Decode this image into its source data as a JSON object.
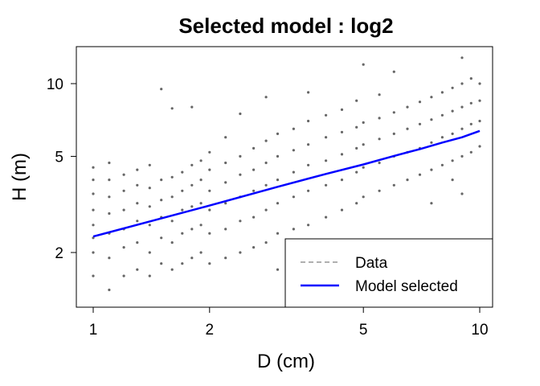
{
  "chart_data": {
    "type": "scatter",
    "title": "Selected model :  log2",
    "xlabel": "D (cm)",
    "ylabel": "H (m)",
    "x_scale": "log",
    "y_scale": "log",
    "xlim": [
      0.95,
      10.5
    ],
    "ylim": [
      1.35,
      13.5
    ],
    "x_ticks": [
      1,
      2,
      5,
      10
    ],
    "x_tick_labels": [
      "1",
      "2",
      "5",
      "10"
    ],
    "y_ticks": [
      2,
      5,
      10
    ],
    "y_tick_labels": [
      "2",
      "5",
      "10"
    ],
    "grid": false,
    "legend_position": "bottom-right",
    "series": [
      {
        "name": "Data",
        "kind": "points",
        "color": "#666666",
        "legend_color": "#b0b0b0",
        "legend_style": "dashed",
        "points": [
          [
            1.0,
            1.6
          ],
          [
            1.0,
            2.0
          ],
          [
            1.0,
            2.3
          ],
          [
            1.0,
            2.6
          ],
          [
            1.0,
            3.0
          ],
          [
            1.0,
            3.5
          ],
          [
            1.0,
            4.0
          ],
          [
            1.0,
            4.5
          ],
          [
            1.1,
            1.4
          ],
          [
            1.1,
            1.9
          ],
          [
            1.1,
            2.4
          ],
          [
            1.1,
            2.9
          ],
          [
            1.1,
            3.4
          ],
          [
            1.1,
            4.0
          ],
          [
            1.1,
            4.7
          ],
          [
            1.2,
            1.6
          ],
          [
            1.2,
            2.1
          ],
          [
            1.2,
            2.5
          ],
          [
            1.2,
            3.0
          ],
          [
            1.2,
            3.6
          ],
          [
            1.2,
            4.2
          ],
          [
            1.3,
            1.7
          ],
          [
            1.3,
            2.2
          ],
          [
            1.3,
            2.7
          ],
          [
            1.3,
            3.2
          ],
          [
            1.3,
            3.8
          ],
          [
            1.3,
            4.4
          ],
          [
            1.4,
            1.6
          ],
          [
            1.4,
            2.0
          ],
          [
            1.4,
            2.6
          ],
          [
            1.4,
            3.1
          ],
          [
            1.4,
            3.7
          ],
          [
            1.4,
            4.6
          ],
          [
            1.5,
            1.8
          ],
          [
            1.5,
            2.3
          ],
          [
            1.5,
            2.8
          ],
          [
            1.5,
            3.3
          ],
          [
            1.5,
            4.0
          ],
          [
            1.5,
            9.5
          ],
          [
            1.6,
            1.7
          ],
          [
            1.6,
            2.2
          ],
          [
            1.6,
            2.7
          ],
          [
            1.6,
            3.4
          ],
          [
            1.6,
            4.1
          ],
          [
            1.6,
            7.9
          ],
          [
            1.7,
            1.8
          ],
          [
            1.7,
            2.4
          ],
          [
            1.7,
            3.0
          ],
          [
            1.7,
            3.6
          ],
          [
            1.7,
            4.3
          ],
          [
            1.8,
            1.9
          ],
          [
            1.8,
            2.5
          ],
          [
            1.8,
            3.1
          ],
          [
            1.8,
            3.8
          ],
          [
            1.8,
            4.6
          ],
          [
            1.8,
            8.0
          ],
          [
            1.9,
            2.0
          ],
          [
            1.9,
            2.6
          ],
          [
            1.9,
            3.2
          ],
          [
            1.9,
            4.0
          ],
          [
            1.9,
            4.8
          ],
          [
            2.0,
            1.8
          ],
          [
            2.0,
            2.4
          ],
          [
            2.0,
            3.0
          ],
          [
            2.0,
            3.6
          ],
          [
            2.0,
            4.4
          ],
          [
            2.0,
            5.2
          ],
          [
            2.2,
            1.9
          ],
          [
            2.2,
            2.5
          ],
          [
            2.2,
            3.2
          ],
          [
            2.2,
            3.9
          ],
          [
            2.2,
            4.7
          ],
          [
            2.2,
            6.0
          ],
          [
            2.4,
            2.0
          ],
          [
            2.4,
            2.7
          ],
          [
            2.4,
            3.4
          ],
          [
            2.4,
            4.2
          ],
          [
            2.4,
            5.0
          ],
          [
            2.4,
            7.5
          ],
          [
            2.6,
            2.1
          ],
          [
            2.6,
            2.8
          ],
          [
            2.6,
            3.6
          ],
          [
            2.6,
            4.4
          ],
          [
            2.6,
            5.4
          ],
          [
            2.8,
            2.2
          ],
          [
            2.8,
            3.0
          ],
          [
            2.8,
            3.8
          ],
          [
            2.8,
            4.7
          ],
          [
            2.8,
            5.8
          ],
          [
            2.8,
            8.8
          ],
          [
            3.0,
            1.7
          ],
          [
            3.0,
            2.4
          ],
          [
            3.0,
            3.2
          ],
          [
            3.0,
            4.0
          ],
          [
            3.0,
            5.0
          ],
          [
            3.0,
            6.2
          ],
          [
            3.3,
            2.5
          ],
          [
            3.3,
            3.4
          ],
          [
            3.3,
            4.3
          ],
          [
            3.3,
            5.3
          ],
          [
            3.3,
            6.5
          ],
          [
            3.6,
            2.6
          ],
          [
            3.6,
            3.6
          ],
          [
            3.6,
            4.6
          ],
          [
            3.6,
            5.6
          ],
          [
            3.6,
            7.0
          ],
          [
            3.6,
            9.2
          ],
          [
            4.0,
            2.8
          ],
          [
            4.0,
            3.8
          ],
          [
            4.0,
            4.8
          ],
          [
            4.0,
            6.0
          ],
          [
            4.0,
            7.4
          ],
          [
            4.4,
            3.0
          ],
          [
            4.4,
            4.0
          ],
          [
            4.4,
            5.1
          ],
          [
            4.4,
            6.3
          ],
          [
            4.4,
            7.8
          ],
          [
            4.8,
            3.2
          ],
          [
            4.8,
            4.3
          ],
          [
            4.8,
            5.4
          ],
          [
            4.8,
            6.6
          ],
          [
            4.8,
            8.5
          ],
          [
            5.0,
            3.4
          ],
          [
            5.0,
            4.5
          ],
          [
            5.0,
            5.6
          ],
          [
            5.0,
            6.9
          ],
          [
            5.0,
            12.0
          ],
          [
            5.5,
            3.6
          ],
          [
            5.5,
            4.7
          ],
          [
            5.5,
            5.9
          ],
          [
            5.5,
            7.2
          ],
          [
            5.5,
            9.0
          ],
          [
            6.0,
            3.8
          ],
          [
            6.0,
            5.0
          ],
          [
            6.0,
            6.2
          ],
          [
            6.0,
            7.6
          ],
          [
            6.0,
            11.2
          ],
          [
            6.5,
            4.0
          ],
          [
            6.5,
            5.2
          ],
          [
            6.5,
            6.5
          ],
          [
            6.5,
            8.0
          ],
          [
            7.0,
            4.2
          ],
          [
            7.0,
            5.4
          ],
          [
            7.0,
            6.8
          ],
          [
            7.0,
            8.4
          ],
          [
            7.5,
            3.2
          ],
          [
            7.5,
            4.4
          ],
          [
            7.5,
            5.7
          ],
          [
            7.5,
            7.1
          ],
          [
            7.5,
            8.8
          ],
          [
            8.0,
            4.6
          ],
          [
            8.0,
            6.0
          ],
          [
            8.0,
            7.4
          ],
          [
            8.0,
            9.2
          ],
          [
            8.5,
            4.0
          ],
          [
            8.5,
            4.8
          ],
          [
            8.5,
            6.2
          ],
          [
            8.5,
            7.7
          ],
          [
            8.5,
            9.6
          ],
          [
            9.0,
            3.5
          ],
          [
            9.0,
            5.0
          ],
          [
            9.0,
            6.5
          ],
          [
            9.0,
            8.0
          ],
          [
            9.0,
            10.0
          ],
          [
            9.0,
            12.8
          ],
          [
            9.5,
            5.2
          ],
          [
            9.5,
            6.8
          ],
          [
            9.5,
            8.3
          ],
          [
            9.5,
            10.5
          ],
          [
            10.0,
            5.5
          ],
          [
            10.0,
            7.0
          ],
          [
            10.0,
            8.5
          ],
          [
            10.0,
            10.0
          ]
        ]
      },
      {
        "name": "Model selected",
        "kind": "line",
        "color": "#0000ff",
        "x": [
          1,
          2,
          3,
          4,
          5,
          6,
          7,
          8,
          9,
          10
        ],
        "y": [
          2.33,
          3.13,
          3.74,
          4.23,
          4.63,
          5.02,
          5.36,
          5.7,
          6.0,
          6.37
        ]
      }
    ]
  }
}
